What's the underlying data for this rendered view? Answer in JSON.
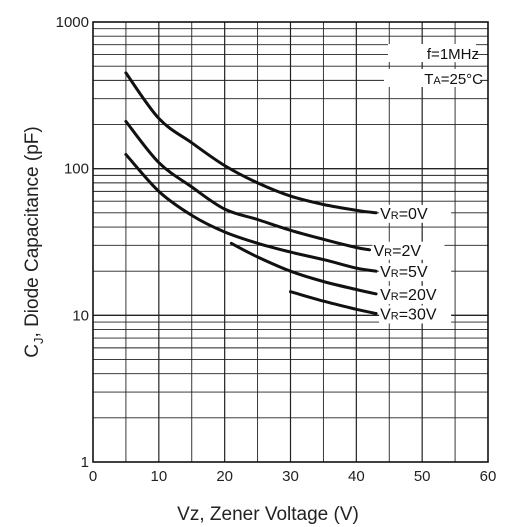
{
  "chart_data": {
    "type": "line",
    "xlabel": "Vz, Zener Voltage (V)",
    "ylabel_main": "C",
    "ylabel_sub": "J",
    "ylabel_rest": ", Diode Capacitance (pF)",
    "xlim": [
      0,
      60
    ],
    "ylim": [
      1,
      1000
    ],
    "yscale": "log",
    "grid": true,
    "x_ticks": [
      0,
      10,
      20,
      30,
      40,
      50,
      60
    ],
    "x_tick_labels": [
      "0",
      "10",
      "20",
      "30",
      "40",
      "50",
      "60"
    ],
    "y_ticks": [
      1,
      10,
      100,
      1000
    ],
    "y_tick_labels": [
      "1",
      "10",
      "100",
      "1000"
    ],
    "annotations": [
      {
        "text": "f=1MHz"
      },
      {
        "text": "T",
        "sub": "A",
        "rest": "=25°C"
      }
    ],
    "series": [
      {
        "name": "VR=0V",
        "label_main": "V",
        "label_sub": "R",
        "label_rest": "=0V",
        "x": [
          5,
          10,
          15,
          20,
          25,
          30,
          35,
          40,
          43
        ],
        "y": [
          450,
          220,
          150,
          105,
          80,
          65,
          57,
          52,
          50
        ]
      },
      {
        "name": "VR=2V",
        "label_main": "V",
        "label_sub": "R",
        "label_rest": "=2V",
        "x": [
          5,
          10,
          15,
          20,
          25,
          30,
          35,
          40,
          42
        ],
        "y": [
          210,
          110,
          75,
          53,
          45,
          38,
          33,
          29,
          28
        ]
      },
      {
        "name": "VR=5V",
        "label_main": "V",
        "label_sub": "R",
        "label_rest": "=5V",
        "x": [
          5,
          10,
          15,
          20,
          25,
          30,
          35,
          40,
          43
        ],
        "y": [
          125,
          70,
          48,
          37,
          31,
          27,
          24,
          21,
          20
        ]
      },
      {
        "name": "VR=20V",
        "label_main": "V",
        "label_sub": "R",
        "label_rest": "=20V",
        "x": [
          21,
          25,
          30,
          35,
          40,
          43
        ],
        "y": [
          31,
          25,
          20,
          17,
          15,
          14
        ]
      },
      {
        "name": "VR=30V",
        "label_main": "V",
        "label_sub": "R",
        "label_rest": "=30V",
        "x": [
          30,
          35,
          40,
          43
        ],
        "y": [
          14.5,
          12.5,
          11,
          10.3
        ]
      }
    ]
  }
}
